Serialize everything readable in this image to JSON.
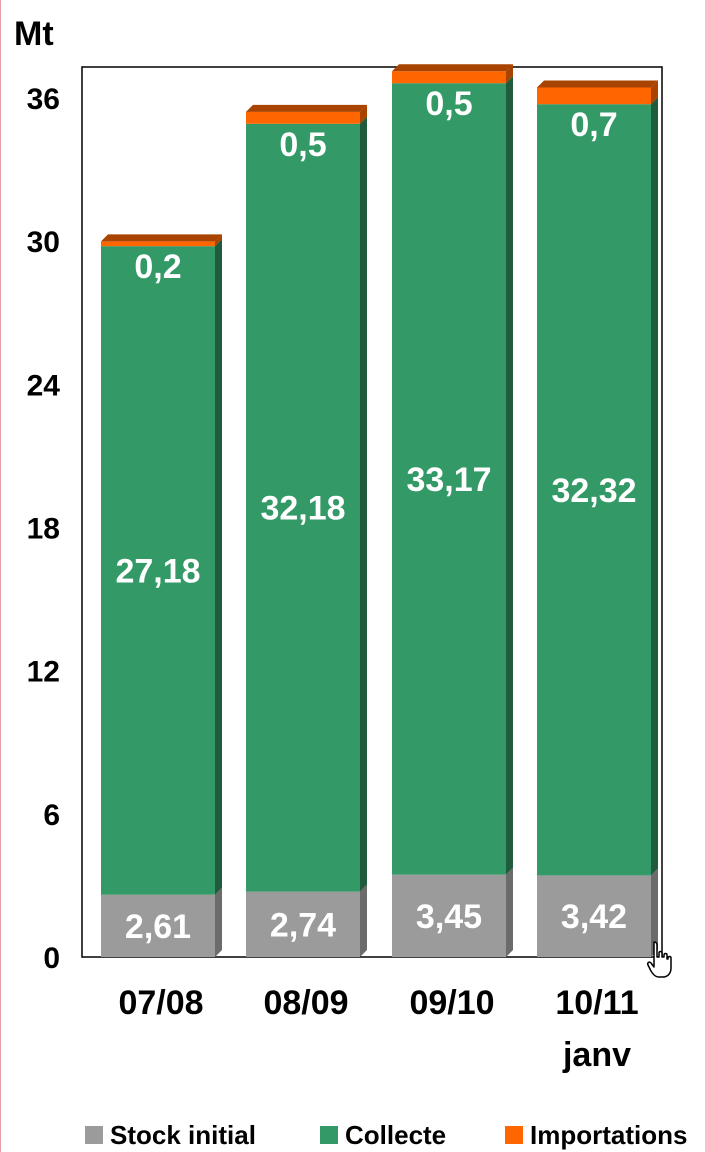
{
  "chart_data": {
    "type": "bar",
    "stacked": true,
    "title": "",
    "xlabel": "",
    "ylabel": "Mt",
    "ylim": [
      0,
      37
    ],
    "yticks": [
      0,
      6,
      12,
      18,
      24,
      30,
      36
    ],
    "categories": [
      [
        "07/08"
      ],
      [
        "08/09"
      ],
      [
        "09/10"
      ],
      [
        "10/11",
        "janv"
      ]
    ],
    "series": [
      {
        "name": "Stock initial",
        "color": "#9b9b9b",
        "side_color": "#6b6b6b",
        "values": [
          2.61,
          2.74,
          3.45,
          3.42
        ],
        "labels": [
          "2,61",
          "2,74",
          "3,45",
          "3,42"
        ]
      },
      {
        "name": "Collecte",
        "color": "#339966",
        "side_color": "#1f5c3d",
        "values": [
          27.18,
          32.18,
          33.17,
          32.32
        ],
        "labels": [
          "27,18",
          "32,18",
          "33,17",
          "32,32"
        ]
      },
      {
        "name": "Importations",
        "color": "#ff6600",
        "side_color": "#a84300",
        "values": [
          0.2,
          0.5,
          0.5,
          0.7
        ],
        "labels": [
          "0,2",
          "0,5",
          "0,5",
          "0,7"
        ]
      }
    ],
    "legend_position": "bottom",
    "grid": false
  }
}
